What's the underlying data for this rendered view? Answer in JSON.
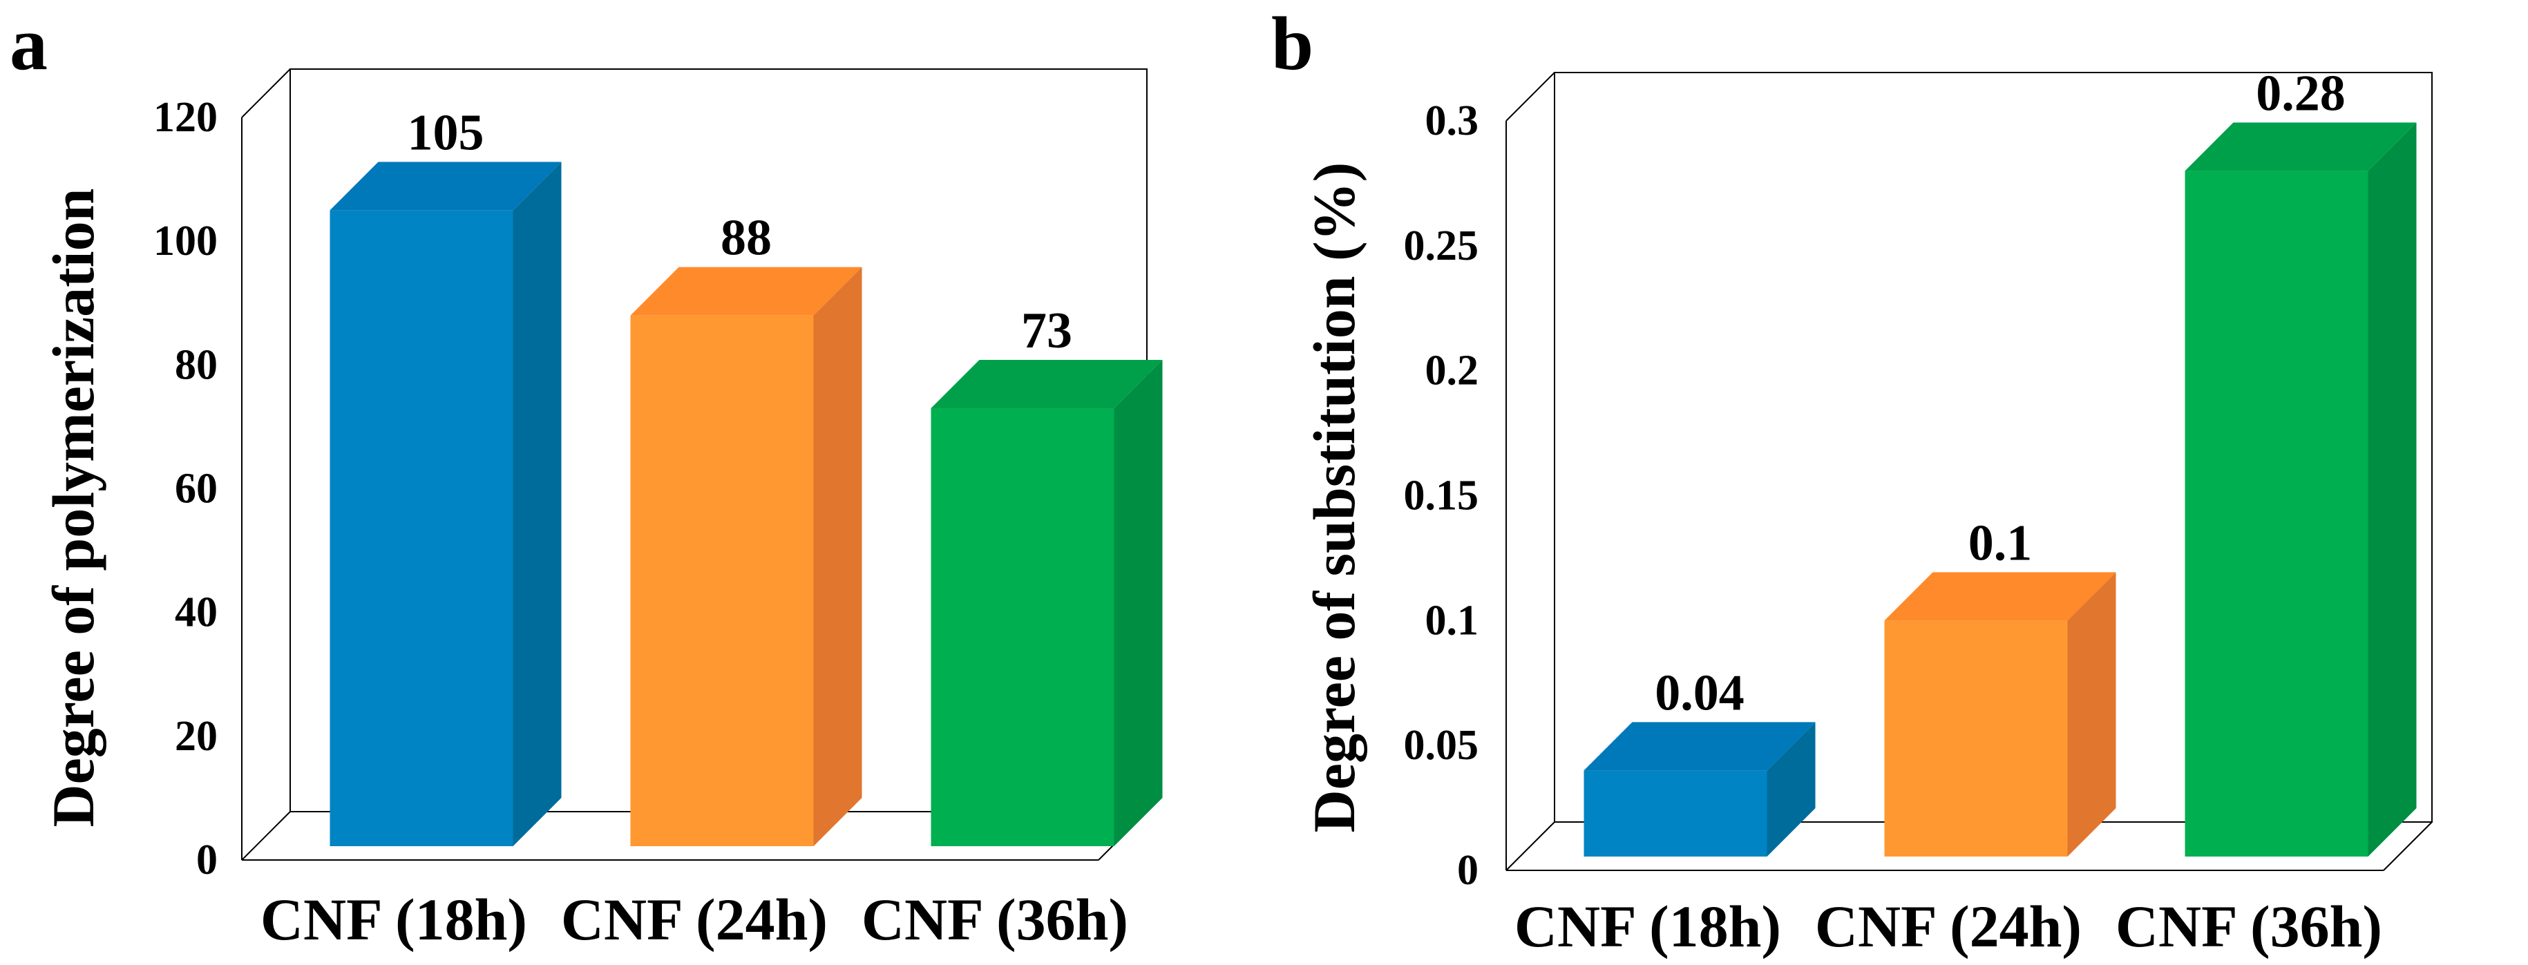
{
  "chart_data": [
    {
      "type": "bar",
      "panel_label": "a",
      "title": "",
      "xlabel": "",
      "ylabel": "Degree of polymerization",
      "categories": [
        "CNF (18h)",
        "CNF (24h)",
        "CNF (36h)"
      ],
      "values": [
        105,
        88,
        73
      ],
      "data_labels": [
        "105",
        "88",
        "73"
      ],
      "ylim": [
        0,
        120
      ],
      "yticks": [
        "0",
        "20",
        "40",
        "60",
        "80",
        "100",
        "120"
      ],
      "colors": [
        "#0084C3",
        "#FF9831",
        "#00AF50"
      ],
      "side_colors": [
        "#006C9C",
        "#E1762E",
        "#008E43"
      ],
      "top_colors": [
        "#0079BA",
        "#FF8A2B",
        "#00A04A"
      ],
      "grid": false,
      "legend": "none"
    },
    {
      "type": "bar",
      "panel_label": "b",
      "title": "",
      "xlabel": "",
      "ylabel": "Degree of substitution (%)",
      "categories": [
        "CNF (18h)",
        "CNF (24h)",
        "CNF (36h)"
      ],
      "values": [
        0.04,
        0.1,
        0.28
      ],
      "data_labels": [
        "0.04",
        "0.1",
        "0.28"
      ],
      "ylim": [
        0,
        0.3
      ],
      "yticks": [
        "0",
        "0.05",
        "0.1",
        "0.15",
        "0.2",
        "0.25",
        "0.3"
      ],
      "colors": [
        "#0084C3",
        "#FF9831",
        "#00AF50"
      ],
      "side_colors": [
        "#006C9C",
        "#E1762E",
        "#008E43"
      ],
      "top_colors": [
        "#0079BA",
        "#FF8A2B",
        "#00A04A"
      ],
      "grid": false,
      "legend": "none"
    }
  ]
}
